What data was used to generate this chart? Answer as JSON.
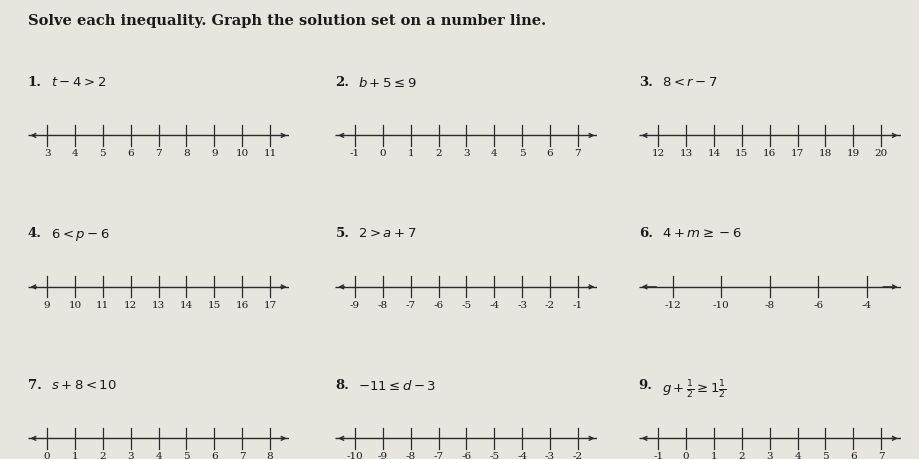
{
  "title": "Solve each inequality. Graph the solution set on a number line.",
  "background_color": "#e8e4de",
  "problems": [
    {
      "num": "1.",
      "label": "$t - 4 > 2$",
      "ticks": [
        3,
        4,
        5,
        6,
        7,
        8,
        9,
        10,
        11
      ],
      "tick_step": 1
    },
    {
      "num": "2.",
      "label": "$b + 5 \\leq 9$",
      "ticks": [
        -1,
        0,
        1,
        2,
        3,
        4,
        5,
        6,
        7
      ],
      "tick_step": 1
    },
    {
      "num": "3.",
      "label": "$8 < r - 7$",
      "ticks": [
        12,
        13,
        14,
        15,
        16,
        17,
        18,
        19,
        20
      ],
      "tick_step": 1
    },
    {
      "num": "4.",
      "label": "$6 < p - 6$",
      "ticks": [
        9,
        10,
        11,
        12,
        13,
        14,
        15,
        16,
        17
      ],
      "tick_step": 1
    },
    {
      "num": "5.",
      "label": "$2 > a + 7$",
      "ticks": [
        -9,
        -8,
        -7,
        -6,
        -5,
        -4,
        -3,
        -2,
        -1
      ],
      "tick_step": 1
    },
    {
      "num": "6.",
      "label": "$4 + m \\geq -6$",
      "ticks": [
        -12,
        -10,
        -8,
        -6,
        -4
      ],
      "tick_step": 2
    },
    {
      "num": "7.",
      "label": "$s + 8 < 10$",
      "ticks": [
        0,
        1,
        2,
        3,
        4,
        5,
        6,
        7,
        8
      ],
      "tick_step": 1
    },
    {
      "num": "8.",
      "label": "$-11 \\leq d - 3$",
      "ticks": [
        -10,
        -9,
        -8,
        -7,
        -6,
        -5,
        -4,
        -3,
        -2
      ],
      "tick_step": 1
    },
    {
      "num": "9.",
      "label": "$g + \\frac{1}{2} \\geq 1\\frac{1}{2}$",
      "ticks": [
        -1,
        0,
        1,
        2,
        3,
        4,
        5,
        6,
        7
      ],
      "tick_step": 1
    }
  ],
  "text_color": "#1a1a1a",
  "line_color": "#2a2a2a",
  "fontsize_title": 10.5,
  "fontsize_label": 9.5,
  "fontsize_tick": 7.5,
  "fontsize_num": 9.5
}
